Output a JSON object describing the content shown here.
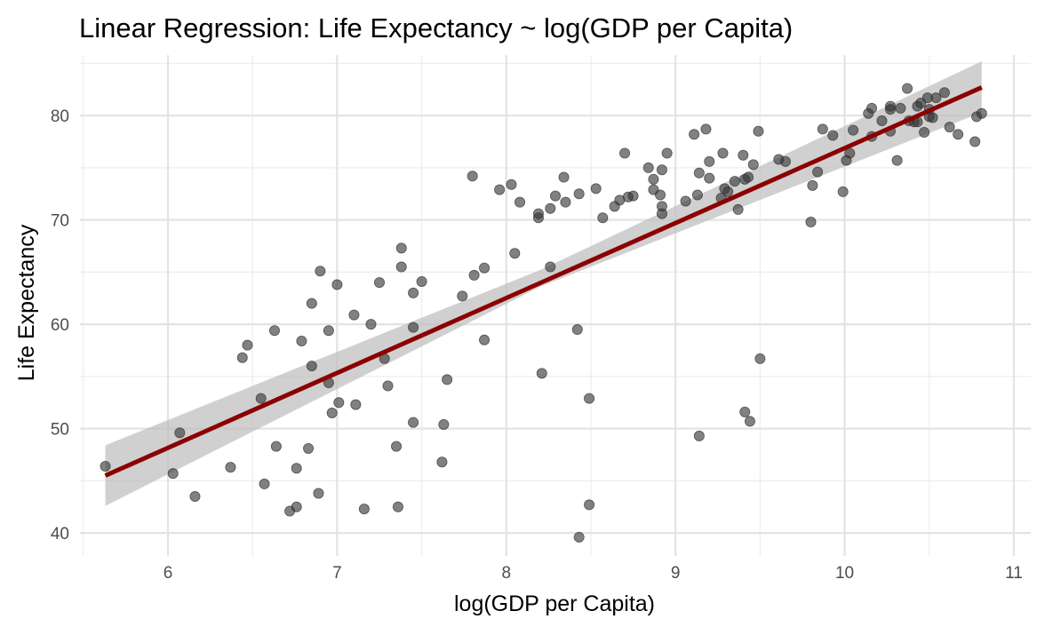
{
  "chart_data": {
    "type": "scatter",
    "title": "Linear Regression: Life Expectancy ~ log(GDP per Capita)",
    "xlabel": "log(GDP per Capita)",
    "ylabel": "Life Expectancy",
    "xlim": [
      5.48,
      11.1
    ],
    "ylim": [
      37.8,
      85.8
    ],
    "x_ticks": [
      6,
      7,
      8,
      9,
      10,
      11
    ],
    "x_tick_labels": [
      "6",
      "7",
      "8",
      "9",
      "10",
      "11"
    ],
    "y_ticks": [
      40,
      50,
      60,
      70,
      80
    ],
    "y_tick_labels": [
      "40",
      "50",
      "60",
      "70",
      "80"
    ],
    "grid": true,
    "point_color": "#333333",
    "fit_line_color": "#8b0000",
    "band_color": "#bebebe",
    "fit_line": {
      "x": [
        5.63,
        10.81
      ],
      "y": [
        45.5,
        82.7
      ]
    },
    "confidence_band": {
      "x": [
        5.63,
        8.2,
        10.81
      ],
      "lower": [
        42.6,
        63.6,
        80.3
      ],
      "upper": [
        48.4,
        65.2,
        85.2
      ]
    },
    "points": [
      [
        5.63,
        46.4
      ],
      [
        6.03,
        45.7
      ],
      [
        6.07,
        49.6
      ],
      [
        6.16,
        43.5
      ],
      [
        6.37,
        46.3
      ],
      [
        6.44,
        56.8
      ],
      [
        6.47,
        58.0
      ],
      [
        6.55,
        52.9
      ],
      [
        6.57,
        44.7
      ],
      [
        6.63,
        59.4
      ],
      [
        6.64,
        48.3
      ],
      [
        6.72,
        42.1
      ],
      [
        6.76,
        42.5
      ],
      [
        6.76,
        46.2
      ],
      [
        6.79,
        58.4
      ],
      [
        6.83,
        48.1
      ],
      [
        6.85,
        56.0
      ],
      [
        6.85,
        62.0
      ],
      [
        6.89,
        43.8
      ],
      [
        6.9,
        65.1
      ],
      [
        6.95,
        59.4
      ],
      [
        6.95,
        54.4
      ],
      [
        6.97,
        51.5
      ],
      [
        7.0,
        63.8
      ],
      [
        7.01,
        52.5
      ],
      [
        7.1,
        60.9
      ],
      [
        7.11,
        52.3
      ],
      [
        7.16,
        42.3
      ],
      [
        7.2,
        60.0
      ],
      [
        7.25,
        64.0
      ],
      [
        7.28,
        56.7
      ],
      [
        7.3,
        54.1
      ],
      [
        7.35,
        48.3
      ],
      [
        7.36,
        42.5
      ],
      [
        7.38,
        67.3
      ],
      [
        7.38,
        65.5
      ],
      [
        7.45,
        63.0
      ],
      [
        7.45,
        59.7
      ],
      [
        7.45,
        50.6
      ],
      [
        7.5,
        64.1
      ],
      [
        7.62,
        46.8
      ],
      [
        7.63,
        50.4
      ],
      [
        7.65,
        54.7
      ],
      [
        7.74,
        62.7
      ],
      [
        7.8,
        74.2
      ],
      [
        7.81,
        64.7
      ],
      [
        7.87,
        65.4
      ],
      [
        7.87,
        58.5
      ],
      [
        7.96,
        72.9
      ],
      [
        8.03,
        73.4
      ],
      [
        8.05,
        66.8
      ],
      [
        8.08,
        71.7
      ],
      [
        8.19,
        70.6
      ],
      [
        8.19,
        70.2
      ],
      [
        8.21,
        55.3
      ],
      [
        8.26,
        71.1
      ],
      [
        8.26,
        65.5
      ],
      [
        8.29,
        72.3
      ],
      [
        8.34,
        74.1
      ],
      [
        8.35,
        71.7
      ],
      [
        8.42,
        59.5
      ],
      [
        8.43,
        39.6
      ],
      [
        8.43,
        72.5
      ],
      [
        8.49,
        52.9
      ],
      [
        8.49,
        42.7
      ],
      [
        8.53,
        73.0
      ],
      [
        8.57,
        70.2
      ],
      [
        8.64,
        71.3
      ],
      [
        8.67,
        71.9
      ],
      [
        8.7,
        76.4
      ],
      [
        8.72,
        72.2
      ],
      [
        8.75,
        72.3
      ],
      [
        8.84,
        75.0
      ],
      [
        8.87,
        73.9
      ],
      [
        8.87,
        72.9
      ],
      [
        8.91,
        72.4
      ],
      [
        8.92,
        74.8
      ],
      [
        8.92,
        71.3
      ],
      [
        8.92,
        70.6
      ],
      [
        8.95,
        76.4
      ],
      [
        9.06,
        71.8
      ],
      [
        9.11,
        78.2
      ],
      [
        9.13,
        72.4
      ],
      [
        9.14,
        74.5
      ],
      [
        9.14,
        49.3
      ],
      [
        9.18,
        78.7
      ],
      [
        9.2,
        74.0
      ],
      [
        9.2,
        75.6
      ],
      [
        9.27,
        72.1
      ],
      [
        9.28,
        76.4
      ],
      [
        9.29,
        73.0
      ],
      [
        9.31,
        72.7
      ],
      [
        9.35,
        73.7
      ],
      [
        9.37,
        71.0
      ],
      [
        9.4,
        76.2
      ],
      [
        9.41,
        73.9
      ],
      [
        9.41,
        51.6
      ],
      [
        9.43,
        74.1
      ],
      [
        9.44,
        50.7
      ],
      [
        9.46,
        75.3
      ],
      [
        9.49,
        78.5
      ],
      [
        9.5,
        56.7
      ],
      [
        9.61,
        75.8
      ],
      [
        9.65,
        75.6
      ],
      [
        9.8,
        69.8
      ],
      [
        9.81,
        73.3
      ],
      [
        9.84,
        74.6
      ],
      [
        9.87,
        78.7
      ],
      [
        9.93,
        78.1
      ],
      [
        9.99,
        72.7
      ],
      [
        10.01,
        75.7
      ],
      [
        10.03,
        76.4
      ],
      [
        10.05,
        78.6
      ],
      [
        10.14,
        80.2
      ],
      [
        10.16,
        80.7
      ],
      [
        10.16,
        78.0
      ],
      [
        10.22,
        79.5
      ],
      [
        10.27,
        80.6
      ],
      [
        10.27,
        80.9
      ],
      [
        10.27,
        78.5
      ],
      [
        10.31,
        75.7
      ],
      [
        10.33,
        80.7
      ],
      [
        10.37,
        82.6
      ],
      [
        10.38,
        79.5
      ],
      [
        10.41,
        79.4
      ],
      [
        10.43,
        80.9
      ],
      [
        10.43,
        79.4
      ],
      [
        10.45,
        81.2
      ],
      [
        10.47,
        78.4
      ],
      [
        10.49,
        81.7
      ],
      [
        10.5,
        80.6
      ],
      [
        10.5,
        79.9
      ],
      [
        10.52,
        79.8
      ],
      [
        10.54,
        81.7
      ],
      [
        10.59,
        82.2
      ],
      [
        10.62,
        78.9
      ],
      [
        10.67,
        78.2
      ],
      [
        10.77,
        77.5
      ],
      [
        10.78,
        79.9
      ],
      [
        10.81,
        80.2
      ]
    ]
  }
}
